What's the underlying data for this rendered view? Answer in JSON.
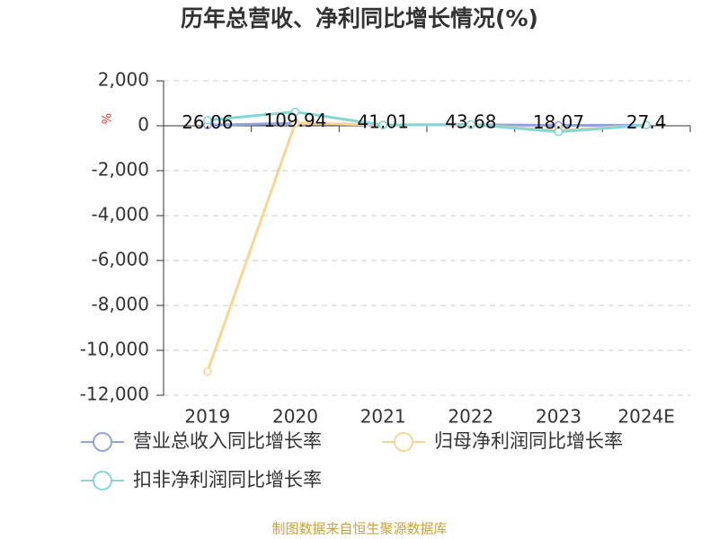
{
  "chart_data": {
    "type": "line",
    "title": "历年总营收、净利同比增长情况(%)",
    "y_axis_label": "%",
    "categories": [
      "2019",
      "2020",
      "2021",
      "2022",
      "2023",
      "2024E"
    ],
    "series": [
      {
        "name": "营业总收入同比增长率",
        "color": "#8fa3d8",
        "values": [
          26.06,
          109.94,
          41.01,
          43.68,
          18.07,
          27.4
        ],
        "show_labels": true
      },
      {
        "name": "归母净利润同比增长率",
        "color": "#f8d597",
        "values": [
          -10950,
          120,
          40,
          50,
          -200,
          30
        ]
      },
      {
        "name": "扣非净利润同比增长率",
        "color": "#86d6d6",
        "values": [
          250,
          620,
          30,
          60,
          -270,
          30
        ]
      }
    ],
    "ylim": [
      -12000,
      2000
    ],
    "yticks": [
      {
        "value": 2000,
        "label": "2,000"
      },
      0,
      {
        "value": -2000,
        "label": "-2,000"
      },
      {
        "value": -4000,
        "label": "-4,000"
      },
      {
        "value": -6000,
        "label": "-6,000"
      },
      {
        "value": -8000,
        "label": "-8,000"
      },
      {
        "value": -10000,
        "label": "-10,000"
      },
      {
        "value": -12000,
        "label": "-12,000"
      }
    ],
    "grid": true,
    "footer": "制图数据来自恒生聚源数据库"
  }
}
